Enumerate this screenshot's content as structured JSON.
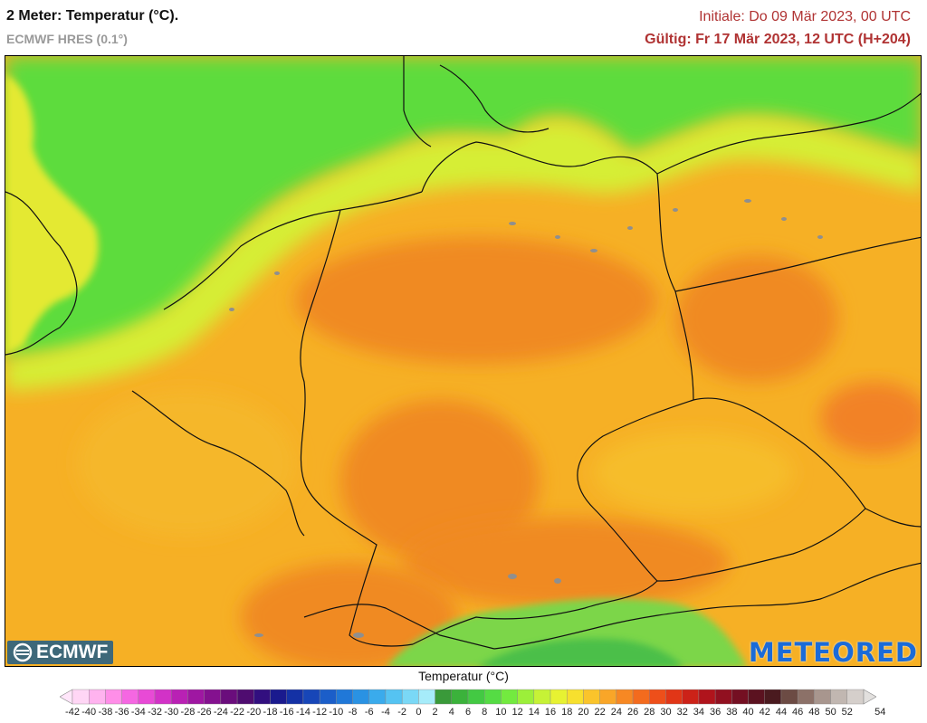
{
  "header": {
    "title": "2 Meter: Temperatur (°C).",
    "model": "ECMWF HRES (0.1°)",
    "init": "Initiale: Do 09 Mär 2023, 00 UTC",
    "valid": "Gültig: Fr 17 Mär 2023, 12 UTC (H+204)"
  },
  "logos": {
    "left": "ECMWF",
    "right": "METEORED"
  },
  "legend": {
    "title": "Temperatur (°C)",
    "labels": [
      "-42",
      "-40",
      "-38",
      "-36",
      "-34",
      "-32",
      "-30",
      "-28",
      "-26",
      "-24",
      "-22",
      "-20",
      "-18",
      "-16",
      "-14",
      "-12",
      "-10",
      "-8",
      "-6",
      "-4",
      "-2",
      "0",
      "2",
      "4",
      "6",
      "8",
      "10",
      "12",
      "14",
      "16",
      "18",
      "20",
      "22",
      "24",
      "26",
      "28",
      "30",
      "32",
      "34",
      "36",
      "38",
      "40",
      "42",
      "44",
      "46",
      "48",
      "50",
      "52",
      "54"
    ],
    "colors": [
      "#ffd6f5",
      "#ffb3ef",
      "#ff8ee8",
      "#f567e2",
      "#e84ad6",
      "#d232c7",
      "#b921b4",
      "#9f17a2",
      "#84118f",
      "#6a0d7c",
      "#4f0c70",
      "#320f7f",
      "#1a1a8e",
      "#1431a5",
      "#1746b8",
      "#1b5ec9",
      "#2078d8",
      "#2a92e3",
      "#3aabec",
      "#55c3f2",
      "#7ad8f6",
      "#a6ecfa",
      "#3a9a3a",
      "#3bb23b",
      "#43c943",
      "#55dc44",
      "#73ea3f",
      "#9cef3a",
      "#c6f236",
      "#e7f232",
      "#f7e02e",
      "#fac42b",
      "#f9a628",
      "#f78823",
      "#f36b1e",
      "#ee4f1a",
      "#e13617",
      "#cc2218",
      "#b0141c",
      "#911020",
      "#740f22",
      "#5b1220",
      "#4a1a1f",
      "#6c4b44",
      "#8c7168",
      "#a8968e",
      "#c1b7b1",
      "#d5cfcb"
    ],
    "under_color": "#ffe6fa",
    "over_color": "#e2e0de"
  },
  "map": {
    "region": "Germany and surrounding Central Europe",
    "variable": "2 m temperature",
    "colors": {
      "sea_north": "#5ddc3c",
      "sea_coast": "#9fe53a",
      "warm": "#f7b022",
      "hot": "#f08a24",
      "cool_land": "#f3c72c",
      "alps": "#5fd05a"
    }
  }
}
